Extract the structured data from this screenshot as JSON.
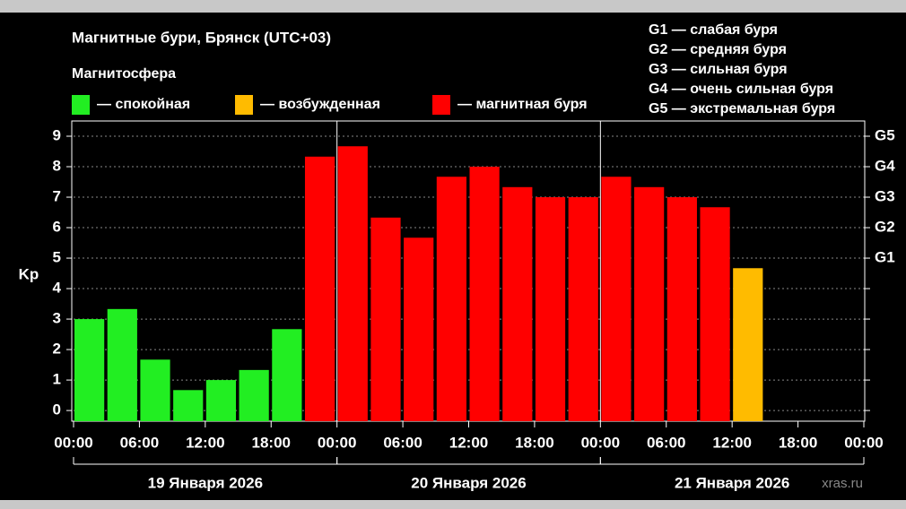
{
  "chart_data": {
    "type": "bar",
    "title": "Магнитные бури, Брянск (UTC+03)",
    "legend_title": "Магнитосфера",
    "legend": [
      {
        "name": "— спокойная",
        "color": "#22ee22"
      },
      {
        "name": "— возбужденная",
        "color": "#ffbb00"
      },
      {
        "name": "— магнитная буря",
        "color": "#ff0000"
      }
    ],
    "scale_notes": [
      "G1 — слабая буря",
      "G2 — средняя буря",
      "G3 — сильная буря",
      "G4 — очень сильная буря",
      "G5 — экстремальная буря"
    ],
    "ylabel": "Kp",
    "x": [
      0,
      3,
      6,
      9,
      12,
      15,
      18,
      21,
      24,
      27,
      30,
      33,
      36,
      39,
      42,
      45,
      48,
      51,
      54,
      57,
      60,
      63,
      66,
      69
    ],
    "values": [
      3,
      3.33,
      1.67,
      0.67,
      1,
      1.33,
      2.67,
      8.33,
      8.67,
      6.33,
      5.67,
      7.67,
      8,
      7.33,
      7,
      7,
      7.67,
      7.33,
      7,
      6.67,
      4.67,
      null,
      null,
      null
    ],
    "colors": [
      "#22ee22",
      "#22ee22",
      "#22ee22",
      "#22ee22",
      "#22ee22",
      "#22ee22",
      "#22ee22",
      "#ff0000",
      "#ff0000",
      "#ff0000",
      "#ff0000",
      "#ff0000",
      "#ff0000",
      "#ff0000",
      "#ff0000",
      "#ff0000",
      "#ff0000",
      "#ff0000",
      "#ff0000",
      "#ff0000",
      "#ffbb00",
      null,
      null,
      null
    ],
    "bar_hours": 3,
    "xlim": [
      0,
      72
    ],
    "xticks": [
      {
        "value": 0,
        "label": "00:00"
      },
      {
        "value": 6,
        "label": "06:00"
      },
      {
        "value": 12,
        "label": "12:00"
      },
      {
        "value": 18,
        "label": "18:00"
      },
      {
        "value": 24,
        "label": "00:00"
      },
      {
        "value": 30,
        "label": "06:00"
      },
      {
        "value": 36,
        "label": "12:00"
      },
      {
        "value": 42,
        "label": "18:00"
      },
      {
        "value": 48,
        "label": "00:00"
      },
      {
        "value": 54,
        "label": "06:00"
      },
      {
        "value": 60,
        "label": "12:00"
      },
      {
        "value": 66,
        "label": "18:00"
      },
      {
        "value": 72,
        "label": "00:00"
      }
    ],
    "days": [
      {
        "label": "19 Января 2026",
        "start": 0,
        "end": 24
      },
      {
        "label": "20 Января 2026",
        "start": 24,
        "end": 48
      },
      {
        "label": "21 Января 2026",
        "start": 48,
        "end": 72
      }
    ],
    "ylim": [
      -0.35,
      9.5
    ],
    "yticks": [
      0,
      1,
      2,
      3,
      4,
      5,
      6,
      7,
      8,
      9
    ],
    "y2ticks": [
      {
        "value": 5,
        "label": "G1"
      },
      {
        "value": 6,
        "label": "G2"
      },
      {
        "value": 7,
        "label": "G3"
      },
      {
        "value": 8,
        "label": "G4"
      },
      {
        "value": 9,
        "label": "G5"
      }
    ],
    "grid": true,
    "watermark": "xras.ru"
  }
}
